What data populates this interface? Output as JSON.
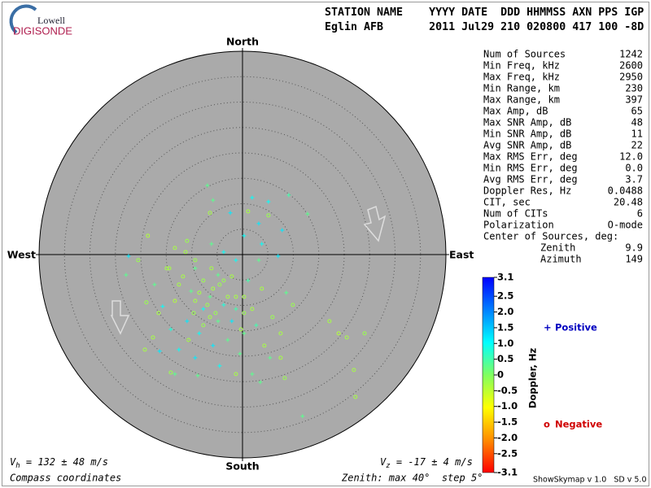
{
  "logo": {
    "top": "Lowell",
    "bottom": "DIGISONDE"
  },
  "header": {
    "lines": [
      "STATION NAME    YYYY DATE  DDD HHMMSS AXN PPS IGP",
      "Eglin AFB       2011 Jul29 210 020800 417 100 -8D"
    ]
  },
  "stats": {
    "rows": [
      [
        "Num of Sources",
        "1242"
      ],
      [
        "Min Freq, kHz",
        "2600"
      ],
      [
        "Max Freq, kHz",
        "2950"
      ],
      [
        "Min Range, km",
        "230"
      ],
      [
        "Max Range, km",
        "397"
      ],
      [
        "Max Amp, dB",
        "65"
      ],
      [
        "Max SNR Amp, dB",
        "48"
      ],
      [
        "Min SNR Amp, dB",
        "11"
      ],
      [
        "Avg SNR Amp, dB",
        "22"
      ],
      [
        "Max RMS Err, deg",
        "12.0"
      ],
      [
        "Min RMS Err, deg",
        "0.0"
      ],
      [
        "Avg RMS Err, deg",
        "3.7"
      ],
      [
        "Doppler Res, Hz",
        "0.0488"
      ],
      [
        "CIT, sec",
        "20.48"
      ],
      [
        "Num of CITs",
        "6"
      ],
      [
        "Polarization",
        "O-mode"
      ]
    ],
    "center": {
      "title": "Center of Sources, deg:",
      "rows": [
        [
          "Zenith",
          "9.9"
        ],
        [
          "Azimuth",
          "149"
        ]
      ]
    }
  },
  "chart_data": {
    "type": "skymap",
    "directions": {
      "north": "North",
      "south": "South",
      "east": "East",
      "west": "West"
    },
    "rlim": [
      0,
      40
    ],
    "rticks": [
      5,
      10,
      15,
      20,
      25,
      30,
      35
    ],
    "colorbar": {
      "label": "Doppler, Hz",
      "lim": [
        -3.1,
        3.1
      ],
      "ticks": [
        3.1,
        2.5,
        {
          "value": 2,
          "label": "2.0"
        },
        1.5,
        {
          "value": 1,
          "label": "1.0"
        },
        0.5,
        0,
        -0.5,
        {
          "value": -1,
          "label": "-1.0"
        },
        -1.5,
        {
          "value": -2,
          "label": "-2.0"
        },
        -2.5,
        -3.1
      ],
      "colors": [
        "#ff0000",
        "#ff8c00",
        "#ffff00",
        "#80ff60",
        "#00ffff",
        "#0080ff",
        "#0000ff"
      ]
    },
    "series": [
      {
        "name": "Positive",
        "marker": "+",
        "color": "#0000c0",
        "x": [
          -6.9,
          -5.8,
          1.9,
          5.1,
          9.1,
          12.8,
          -2.4,
          3.2,
          7.8,
          7.0,
          3.8,
          0.3,
          -9.3,
          -6.4,
          -3.7,
          -1.3,
          -10.9,
          -8.5,
          -5.8,
          -2.9,
          -12.5,
          -13.3,
          -8.8,
          -4.5,
          -0.5,
          3.5,
          1.9,
          11.8,
          -22.4,
          -22.9,
          -17.3,
          -15.7,
          -14.1,
          -10.1,
          -4.8,
          1.1,
          3.2,
          8.6,
          -1.3,
          -9.3,
          -16.3,
          -2.1,
          0.3,
          2.7,
          5.4,
          -6.1,
          -3.7,
          -7.7,
          -4.8
        ],
        "y": [
          13.6,
          10.7,
          11.2,
          10.4,
          11.7,
          8.0,
          8.2,
          6.1,
          4.8,
          -0.3,
          2.1,
          3.7,
          -2.7,
          -8.3,
          -9.9,
          -10.7,
          -13.1,
          -15.5,
          -17.9,
          -16.8,
          -18.7,
          -23.5,
          -23.8,
          -21.9,
          -19.5,
          -25.1,
          -23.5,
          -31.8,
          -0.3,
          -4.0,
          -5.9,
          -10.2,
          -14.7,
          -7.2,
          -4.0,
          -5.1,
          -1.1,
          -7.5,
          -1.1,
          -20.3,
          -19.0,
          -13.1,
          -15.5,
          -13.9,
          -20.3,
          2.1,
          0.5,
          -10.7,
          -13.1
        ],
        "doppler": [
          0.3,
          0.3,
          1.0,
          1.0,
          0.5,
          0.3,
          1.2,
          1.2,
          1.2,
          1.2,
          1.0,
          1.0,
          0.3,
          0.3,
          0.8,
          0.5,
          1.2,
          1.0,
          1.2,
          0.3,
          1.0,
          0.3,
          0.3,
          1.0,
          0.3,
          0.3,
          0.3,
          0.3,
          1.2,
          0.3,
          0.3,
          1.0,
          0.8,
          0.3,
          0.3,
          0.5,
          0.3,
          0.3,
          1.0,
          1.2,
          1.2,
          1.2,
          0.3,
          0.5,
          0.3,
          0.3,
          1.0,
          1.0,
          0.3
        ]
      },
      {
        "name": "Negative",
        "marker": "o",
        "color": "#d00000",
        "x": [
          -6.4,
          -10.9,
          -13.3,
          -18.6,
          -20.5,
          -14.9,
          -11.7,
          -7.7,
          -5.8,
          -4.5,
          -8.5,
          -2.9,
          -6.9,
          -1.3,
          -9.3,
          -5.3,
          -13.3,
          -16.5,
          -18.9,
          -17.6,
          -10.6,
          -7.7,
          -0.3,
          1.9,
          5.9,
          7.5,
          4.3,
          9.9,
          17.1,
          18.9,
          20.5,
          24.0,
          21.9,
          22.2,
          8.3,
          7.5,
          -1.3,
          -14.1,
          -19.2,
          -14.4,
          -9.3,
          -11.2,
          -6.1,
          -3.7,
          -2.1,
          0.3,
          0.3,
          3.8,
          -12.5,
          -9.6,
          -6.4,
          1.1,
          5.1
        ],
        "y": [
          8.2,
          2.7,
          1.3,
          3.7,
          -1.1,
          -2.7,
          -4.3,
          -5.1,
          -6.7,
          -5.9,
          -7.5,
          -8.3,
          -9.9,
          -8.3,
          -9.1,
          -11.5,
          -9.1,
          -11.5,
          -9.4,
          -16.3,
          -16.8,
          -13.9,
          -14.7,
          -10.7,
          -12.3,
          -15.5,
          -17.9,
          -9.9,
          -13.1,
          -15.5,
          -16.3,
          -15.5,
          -22.7,
          -28.0,
          -24.3,
          -20.3,
          -23.5,
          -23.2,
          -18.7,
          -2.7,
          -1.1,
          0.5,
          -2.7,
          -5.1,
          -4.3,
          -8.3,
          -11.5,
          -6.7,
          -5.9,
          -11.5,
          -12.3,
          8.5,
          7.7
        ],
        "doppler": [
          -0.3,
          -0.2,
          -0.3,
          -0.4,
          -0.2,
          -0.3,
          -0.3,
          -0.2,
          -0.3,
          -0.2,
          -0.3,
          -0.3,
          -0.2,
          -0.3,
          -0.3,
          -0.2,
          -0.4,
          -0.3,
          -0.2,
          -0.3,
          -0.3,
          -0.2,
          -0.3,
          -0.3,
          -0.2,
          -0.3,
          -0.3,
          -0.2,
          -0.3,
          -0.4,
          -0.3,
          -0.2,
          -0.3,
          -0.3,
          -0.2,
          -0.3,
          -0.3,
          -0.2,
          -0.3,
          -0.3,
          -0.2,
          -0.3,
          -0.3,
          -0.2,
          -0.3,
          -0.3,
          -0.2,
          -0.3,
          -0.3,
          -0.2,
          -0.3,
          -0.3,
          -0.2
        ]
      }
    ]
  },
  "footer": {
    "vh": {
      "symbol": "V",
      "sub": "h",
      "text": " = 132 ± 48 m/s"
    },
    "vz": {
      "symbol": "V",
      "sub": "z",
      "text": " = -17 ± 4 m/s"
    },
    "coords": "Compass coordinates",
    "zenith": "Zenith: max 40°  step 5°",
    "version": "ShowSkymap v 1.0   SD v 5.0"
  }
}
